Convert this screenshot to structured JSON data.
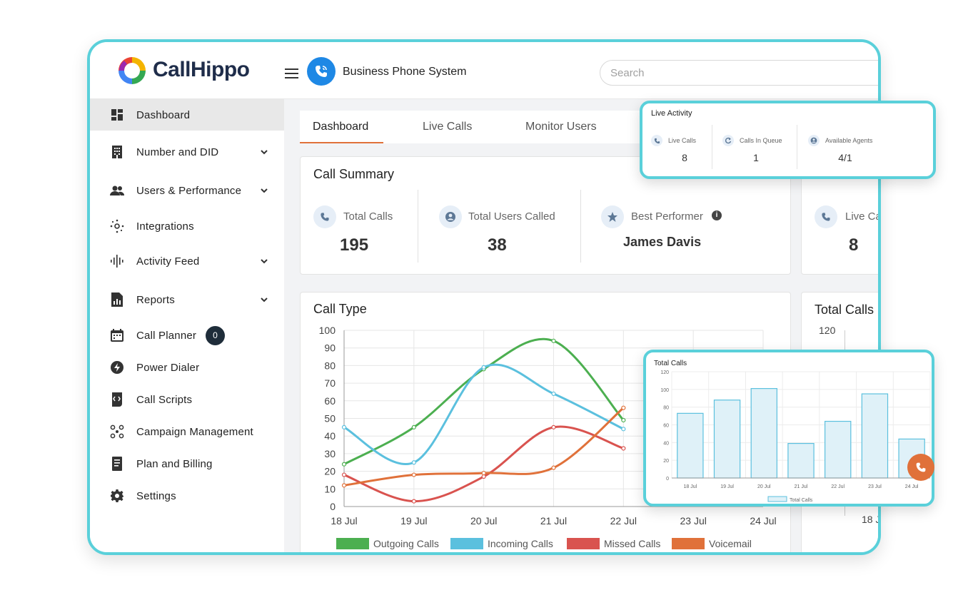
{
  "brand": {
    "name": "CallHippo"
  },
  "header": {
    "title": "Business Phone System",
    "search_placeholder": "Search"
  },
  "sidebar": {
    "items": [
      {
        "label": "Dashboard",
        "icon": "dashboard-icon",
        "active": true
      },
      {
        "label": "Number and DID",
        "icon": "building-icon",
        "expandable": true
      },
      {
        "label": "Users & Performance",
        "icon": "users-icon",
        "expandable": true
      },
      {
        "label": "Integrations",
        "icon": "integrations-icon"
      },
      {
        "label": "Activity Feed",
        "icon": "waveform-icon",
        "expandable": true
      },
      {
        "label": "Reports",
        "icon": "reports-icon",
        "expandable": true
      },
      {
        "label": "Call Planner",
        "icon": "calendar-icon",
        "badge": "0"
      },
      {
        "label": "Power Dialer",
        "icon": "bolt-icon"
      },
      {
        "label": "Call Scripts",
        "icon": "script-icon"
      },
      {
        "label": "Campaign Management",
        "icon": "campaign-icon"
      },
      {
        "label": "Plan and Billing",
        "icon": "billing-icon"
      },
      {
        "label": "Settings",
        "icon": "gear-icon"
      }
    ]
  },
  "tabs": [
    {
      "label": "Dashboard"
    },
    {
      "label": "Live Calls"
    },
    {
      "label": "Monitor Users"
    }
  ],
  "call_summary": {
    "title": "Call Summary",
    "total_calls": {
      "label": "Total Calls",
      "value": "195"
    },
    "total_users_called": {
      "label": "Total Users Called",
      "value": "38"
    },
    "best_performer": {
      "label": "Best Performer",
      "value": "James Davis"
    }
  },
  "right_partial": {
    "live_calls_label": "Live Ca",
    "live_calls_value": "8",
    "total_calls_title": "Total Calls",
    "axis_top": "120",
    "tick": "18 J"
  },
  "live_activity": {
    "title": "Live Activity",
    "items": [
      {
        "label": "Live Calls",
        "value": "8"
      },
      {
        "label": "Calls In Queue",
        "value": "1"
      },
      {
        "label": "Available Agents",
        "value": "4/1"
      }
    ]
  },
  "chart_data": [
    {
      "type": "line",
      "title": "Call Type",
      "x": [
        "18 Jul",
        "19 Jul",
        "20 Jul",
        "21 Jul",
        "22 Jul",
        "23 Jul",
        "24 Jul"
      ],
      "ylim": [
        0,
        100
      ],
      "yticks": [
        0,
        10,
        20,
        30,
        40,
        50,
        60,
        70,
        80,
        90,
        100
      ],
      "legend_position": "bottom",
      "grid": true,
      "series": [
        {
          "name": "Outgoing Calls",
          "color": "#4caf50",
          "values": [
            24,
            45,
            78,
            94,
            49,
            null,
            null
          ]
        },
        {
          "name": "Incoming Calls",
          "color": "#5bc0de",
          "values": [
            45,
            25,
            79,
            64,
            44,
            null,
            null
          ]
        },
        {
          "name": "Missed Calls",
          "color": "#d9534f",
          "values": [
            18,
            3,
            17,
            45,
            33,
            null,
            null
          ]
        },
        {
          "name": "Voicemail",
          "color": "#e0713a",
          "values": [
            12,
            18,
            19,
            22,
            56,
            null,
            null
          ]
        }
      ]
    },
    {
      "type": "bar",
      "title": "Total Calls",
      "categories": [
        "18 Jul",
        "19 Jul",
        "20 Jul",
        "21 Jul",
        "22 Jul",
        "23 Jul",
        "24 Jul"
      ],
      "ylim": [
        0,
        120
      ],
      "yticks": [
        0,
        20,
        40,
        60,
        80,
        100,
        120
      ],
      "legend_position": "bottom",
      "grid": true,
      "series": [
        {
          "name": "Total Calls",
          "color": "#5bc0de",
          "values": [
            73,
            88,
            101,
            39,
            64,
            95,
            44
          ]
        }
      ]
    }
  ]
}
